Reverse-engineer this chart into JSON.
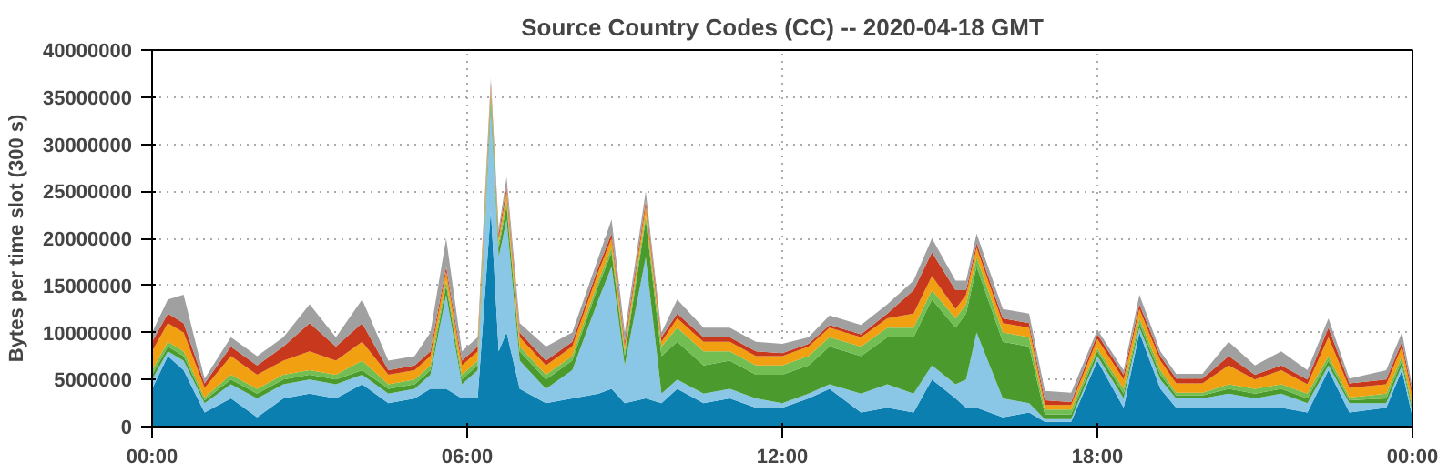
{
  "chart_data": {
    "type": "area",
    "stacked": true,
    "title": "Source Country Codes (CC) -- 2020-04-18 GMT",
    "ylabel": "Bytes per time slot (300 s)",
    "x": [
      0,
      0.3,
      0.6,
      1,
      1.5,
      2,
      2.5,
      3,
      3.5,
      4,
      4.5,
      5,
      5.3,
      5.6,
      5.9,
      6.2,
      6.45,
      6.6,
      6.75,
      7,
      7.5,
      8,
      8.5,
      8.75,
      9,
      9.4,
      9.7,
      10,
      10.5,
      11,
      11.5,
      12,
      12.5,
      12.9,
      13.5,
      14,
      14.5,
      14.85,
      15.3,
      15.5,
      15.7,
      16.2,
      16.7,
      17,
      17.5,
      18,
      18.5,
      18.8,
      19.2,
      19.5,
      20,
      20.5,
      21,
      21.5,
      22,
      22.4,
      22.8,
      23.5,
      23.8,
      24
    ],
    "xlim": [
      0,
      24
    ],
    "xticks": [
      {
        "value": 0,
        "label": "00:00"
      },
      {
        "value": 6,
        "label": "06:00"
      },
      {
        "value": 12,
        "label": "12:00"
      },
      {
        "value": 18,
        "label": "18:00"
      },
      {
        "value": 24,
        "label": "00:00"
      }
    ],
    "ylim": [
      0,
      40000000
    ],
    "yticks": [
      0,
      5000000,
      10000000,
      15000000,
      20000000,
      25000000,
      30000000,
      35000000,
      40000000
    ],
    "grid": true,
    "series": [
      {
        "color": "#0a7fb0",
        "values": [
          4000000,
          7500000,
          6000000,
          1500000,
          3000000,
          1000000,
          3000000,
          3500000,
          3000000,
          4500000,
          2500000,
          3000000,
          4000000,
          4000000,
          3000000,
          3000000,
          23000000,
          8000000,
          10000000,
          4000000,
          2500000,
          3000000,
          3500000,
          4000000,
          2500000,
          3000000,
          2500000,
          4000000,
          2500000,
          3000000,
          2000000,
          2000000,
          3000000,
          4000000,
          1500000,
          2000000,
          1500000,
          5000000,
          3000000,
          2000000,
          2000000,
          1000000,
          1500000,
          500000,
          500000,
          7000000,
          2000000,
          10000000,
          4000000,
          2000000,
          2000000,
          2000000,
          2000000,
          2000000,
          1500000,
          6000000,
          1500000,
          2000000,
          6000000,
          1000000
        ]
      },
      {
        "color": "#8ac6e6",
        "values": [
          1000000,
          500000,
          1000000,
          1000000,
          1500000,
          2000000,
          1500000,
          1500000,
          1500000,
          1000000,
          1000000,
          1000000,
          1500000,
          10000000,
          1500000,
          3000000,
          11000000,
          10000000,
          12000000,
          3000000,
          1500000,
          3000000,
          10000000,
          13000000,
          4000000,
          15000000,
          1000000,
          1000000,
          1000000,
          1000000,
          1000000,
          500000,
          500000,
          500000,
          2000000,
          2500000,
          2000000,
          1500000,
          1500000,
          3000000,
          8000000,
          2000000,
          1000000,
          300000,
          300000,
          500000,
          1000000,
          500000,
          1000000,
          1000000,
          1000000,
          1500000,
          1000000,
          1500000,
          1000000,
          500000,
          1000000,
          500000,
          500000,
          500000
        ]
      },
      {
        "color": "#4a9a2e",
        "values": [
          500000,
          500000,
          500000,
          300000,
          500000,
          500000,
          500000,
          500000,
          500000,
          500000,
          500000,
          500000,
          500000,
          1000000,
          500000,
          500000,
          1000000,
          1000000,
          1500000,
          1000000,
          1000000,
          1000000,
          1500000,
          1500000,
          1000000,
          4000000,
          4000000,
          4000000,
          3000000,
          3000000,
          2500000,
          3000000,
          3000000,
          4000000,
          4000000,
          5000000,
          6000000,
          7000000,
          6000000,
          7000000,
          7000000,
          6000000,
          6000000,
          500000,
          500000,
          500000,
          500000,
          500000,
          500000,
          300000,
          300000,
          500000,
          500000,
          500000,
          500000,
          500000,
          300000,
          500000,
          500000,
          300000
        ]
      },
      {
        "color": "#72be52",
        "values": [
          500000,
          500000,
          500000,
          300000,
          500000,
          500000,
          500000,
          500000,
          500000,
          1000000,
          500000,
          500000,
          500000,
          500000,
          500000,
          500000,
          500000,
          500000,
          500000,
          500000,
          500000,
          500000,
          500000,
          500000,
          500000,
          500000,
          1000000,
          1500000,
          1500000,
          1000000,
          1000000,
          1000000,
          1000000,
          1000000,
          1000000,
          1000000,
          1000000,
          1000000,
          1000000,
          1000000,
          1000000,
          1000000,
          1000000,
          500000,
          500000,
          300000,
          500000,
          500000,
          500000,
          300000,
          300000,
          500000,
          500000,
          500000,
          500000,
          500000,
          300000,
          500000,
          500000,
          300000
        ]
      },
      {
        "color": "#f0a010",
        "values": [
          2000000,
          2000000,
          2000000,
          1000000,
          2000000,
          1500000,
          1500000,
          2000000,
          1500000,
          2000000,
          1000000,
          1000000,
          1000000,
          1000000,
          1000000,
          1000000,
          500000,
          500000,
          1000000,
          1000000,
          1000000,
          1000000,
          1000000,
          1000000,
          500000,
          1000000,
          500000,
          1000000,
          1000000,
          1000000,
          1000000,
          1000000,
          1000000,
          1000000,
          1000000,
          1000000,
          1500000,
          1500000,
          1000000,
          1000000,
          1000000,
          1000000,
          1000000,
          500000,
          500000,
          1000000,
          1000000,
          1000000,
          1000000,
          1000000,
          1000000,
          2000000,
          1000000,
          1500000,
          1000000,
          2000000,
          1000000,
          1000000,
          1000000,
          1000000
        ]
      },
      {
        "color": "#c8381c",
        "values": [
          1000000,
          1000000,
          1000000,
          500000,
          1000000,
          1000000,
          1500000,
          3000000,
          1500000,
          2000000,
          500000,
          500000,
          500000,
          500000,
          500000,
          500000,
          500000,
          500000,
          500000,
          500000,
          500000,
          500000,
          500000,
          500000,
          500000,
          500000,
          500000,
          500000,
          500000,
          500000,
          500000,
          300000,
          300000,
          300000,
          300000,
          500000,
          2500000,
          2500000,
          2000000,
          500000,
          500000,
          500000,
          500000,
          500000,
          300000,
          500000,
          500000,
          500000,
          500000,
          500000,
          500000,
          1000000,
          500000,
          500000,
          500000,
          1000000,
          500000,
          500000,
          500000,
          500000
        ]
      },
      {
        "color": "#a0a0a0",
        "values": [
          1000000,
          1500000,
          3000000,
          500000,
          1000000,
          1000000,
          1000000,
          2000000,
          1000000,
          2500000,
          1000000,
          1000000,
          2000000,
          3000000,
          1000000,
          1000000,
          500000,
          500000,
          1000000,
          1000000,
          1500000,
          1000000,
          1000000,
          1500000,
          1000000,
          1000000,
          500000,
          1500000,
          1000000,
          1000000,
          1000000,
          1000000,
          700000,
          1000000,
          1000000,
          1000000,
          1000000,
          1500000,
          1000000,
          1000000,
          1000000,
          1000000,
          1000000,
          1000000,
          1000000,
          500000,
          500000,
          1000000,
          500000,
          500000,
          500000,
          1500000,
          1000000,
          1500000,
          1000000,
          1000000,
          500000,
          1000000,
          1000000,
          500000
        ]
      }
    ]
  }
}
